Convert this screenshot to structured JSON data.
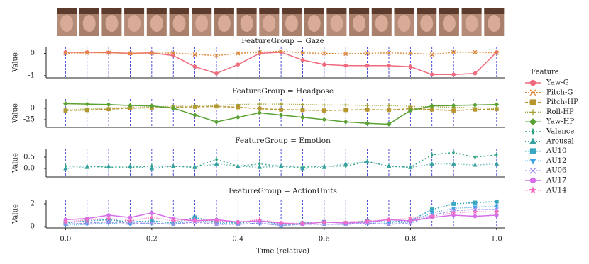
{
  "legend": {
    "title": "Feature"
  },
  "event_lines": [
    0,
    0.05,
    0.1,
    0.15,
    0.2,
    0.25,
    0.3,
    0.35,
    0.4,
    0.45,
    0.5,
    0.55,
    0.6,
    0.65,
    0.7,
    0.75,
    0.8,
    0.85,
    0.9,
    0.95,
    1
  ],
  "chart_data": [
    {
      "type": "line",
      "title": "FeatureGroup = Gaze",
      "ylabel": "Value",
      "x": [
        0,
        0.05,
        0.1,
        0.15,
        0.2,
        0.25,
        0.3,
        0.35,
        0.4,
        0.45,
        0.5,
        0.55,
        0.6,
        0.65,
        0.7,
        0.75,
        0.8,
        0.85,
        0.9,
        0.95,
        1
      ],
      "xlim": [
        -0.045,
        1.02
      ],
      "ylim": [
        -1.1,
        0.3
      ],
      "yticks": [
        -1,
        0
      ],
      "series": [
        {
          "name": "Yaw-G",
          "color": "#ee6a7c",
          "marker": "circle",
          "dash": "",
          "values": [
            0.05,
            0.05,
            0.03,
            0,
            0.02,
            -0.1,
            -0.6,
            -0.9,
            -0.5,
            0,
            0.05,
            -0.3,
            -0.5,
            -0.55,
            -0.55,
            -0.55,
            -0.6,
            -0.95,
            -0.95,
            -0.9,
            0.05
          ]
        },
        {
          "name": "Pitch-G",
          "color": "#e08a3c",
          "marker": "x",
          "dash": "2 2",
          "values": [
            0,
            0.02,
            0.03,
            0,
            0,
            0.02,
            -0.05,
            -0.1,
            0,
            0.05,
            0.1,
            0.02,
            0,
            -0.02,
            0,
            0.02,
            0,
            -0.05,
            0.05,
            0.05,
            0.02
          ]
        }
      ]
    },
    {
      "type": "line",
      "title": "FeatureGroup = Headpose",
      "ylabel": "Value",
      "x": [
        0,
        0.05,
        0.1,
        0.15,
        0.2,
        0.25,
        0.3,
        0.35,
        0.4,
        0.45,
        0.5,
        0.55,
        0.6,
        0.65,
        0.7,
        0.75,
        0.8,
        0.85,
        0.9,
        0.95,
        1
      ],
      "xlim": [
        -0.045,
        1.02
      ],
      "ylim": [
        -42,
        20
      ],
      "yticks": [
        -25,
        0
      ],
      "series": [
        {
          "name": "Pitch-HP",
          "color": "#b6962e",
          "marker": "square",
          "dash": "4 2",
          "values": [
            -5,
            -4,
            -2,
            0,
            1,
            2,
            3,
            4,
            2,
            -1,
            -3,
            -4,
            -5,
            -4,
            -3,
            -4,
            -1,
            -3,
            -5,
            -3,
            -2
          ]
        },
        {
          "name": "Roll-HP",
          "color": "#a3a13a",
          "marker": "plus",
          "dash": "1 2",
          "values": [
            -3,
            -2,
            0,
            2,
            3,
            4,
            5,
            6,
            8,
            9,
            9,
            8,
            7,
            7,
            6,
            6,
            4,
            3,
            2,
            1,
            0
          ]
        },
        {
          "name": "Yaw-HP",
          "color": "#58a132",
          "marker": "diamond",
          "dash": "",
          "values": [
            10,
            9,
            8,
            6,
            5,
            0,
            -15,
            -30,
            -20,
            -10,
            -15,
            -20,
            -25,
            -30,
            -33,
            -35,
            -5,
            5,
            6,
            7,
            8
          ]
        }
      ]
    },
    {
      "type": "line",
      "title": "FeatureGroup = Emotion",
      "ylabel": "Value",
      "x": [
        0,
        0.05,
        0.1,
        0.15,
        0.2,
        0.25,
        0.3,
        0.35,
        0.4,
        0.45,
        0.5,
        0.55,
        0.6,
        0.65,
        0.7,
        0.75,
        0.8,
        0.85,
        0.9,
        0.95,
        1
      ],
      "xlim": [
        -0.045,
        1.02
      ],
      "ylim": [
        -0.375,
        0.875
      ],
      "yticks": [
        {
          "value": 0,
          "label": "0.0"
        },
        0.5
      ],
      "series": [
        {
          "name": "Valence",
          "color": "#33a687",
          "marker": "thin-diamond",
          "dash": "2 3",
          "values": [
            0.1,
            0.1,
            0.05,
            0.05,
            0.1,
            0.1,
            0.05,
            0.4,
            0.1,
            0.2,
            0.1,
            0.05,
            0.1,
            0.1,
            0.3,
            0.1,
            0.05,
            0.6,
            0.7,
            0.5,
            0.6
          ]
        },
        {
          "name": "Arousal",
          "color": "#36a2a0",
          "marker": "triangle",
          "dash": "1 3",
          "values": [
            0,
            0.05,
            0.1,
            0.1,
            0,
            0.1,
            0.05,
            0.2,
            0.1,
            0.05,
            0.1,
            0,
            0.05,
            0.2,
            0.3,
            0.1,
            0.05,
            0.2,
            0.2,
            0.15,
            0.2
          ]
        }
      ]
    },
    {
      "type": "line",
      "title": "FeatureGroup = ActionUnits",
      "ylabel": "Value",
      "xlabel": "Time (relative)",
      "x": [
        0,
        0.05,
        0.1,
        0.15,
        0.2,
        0.25,
        0.3,
        0.35,
        0.4,
        0.45,
        0.5,
        0.55,
        0.6,
        0.65,
        0.7,
        0.75,
        0.8,
        0.85,
        0.9,
        0.95,
        1
      ],
      "xlim": [
        -0.045,
        1.02
      ],
      "ylim": [
        -0.125,
        2.375
      ],
      "yticks": [
        0,
        2
      ],
      "xticks": [
        {
          "value": 0,
          "label": "0.0"
        },
        0.2,
        0.4,
        0.6,
        0.8,
        {
          "value": 1,
          "label": "1.0"
        }
      ],
      "series": [
        {
          "name": "AU10",
          "color": "#39a7bf",
          "marker": "square",
          "dash": "2 2",
          "values": [
            0.3,
            0.5,
            0.6,
            0.4,
            0.5,
            0.3,
            0.8,
            0.4,
            0.3,
            0.5,
            0.2,
            0.3,
            0.4,
            0.3,
            0.5,
            0.4,
            0.5,
            1.5,
            2,
            2.1,
            2.2
          ]
        },
        {
          "name": "AU12",
          "color": "#3ba3e6",
          "marker": "triangle-down",
          "dash": "1 2",
          "values": [
            0.1,
            0.2,
            0.3,
            0.2,
            0.3,
            0.2,
            0.6,
            0.3,
            0.2,
            0.3,
            0.1,
            0.2,
            0.2,
            0.2,
            0.3,
            0.3,
            0.4,
            1.2,
            1.6,
            1.7,
            1.8
          ]
        },
        {
          "name": "AU06",
          "color": "#a390ee",
          "marker": "x",
          "dash": "3 2",
          "values": [
            0.2,
            0.3,
            0.4,
            0.3,
            0.3,
            0.2,
            0.4,
            0.2,
            0.2,
            0.3,
            0.1,
            0.2,
            0.2,
            0.2,
            0.3,
            0.2,
            0.3,
            1,
            1.4,
            1.5,
            1.5
          ]
        },
        {
          "name": "AU17",
          "color": "#d66ee8",
          "marker": "circle",
          "dash": "",
          "values": [
            0.6,
            0.7,
            1,
            0.8,
            1.2,
            0.7,
            0.5,
            0.6,
            0.4,
            0.5,
            0.3,
            0.2,
            0.4,
            0.3,
            0.4,
            0.6,
            0.5,
            0.8,
            1,
            0.9,
            1
          ]
        },
        {
          "name": "AU14",
          "color": "#f36bbf",
          "marker": "star",
          "dash": "1 2",
          "values": [
            0.4,
            0.6,
            0.7,
            0.5,
            0.8,
            0.5,
            0.6,
            0.5,
            0.4,
            0.6,
            0.3,
            0.3,
            0.4,
            0.4,
            0.5,
            0.6,
            0.7,
            0.9,
            1.2,
            1.3,
            1.3
          ]
        }
      ]
    }
  ]
}
